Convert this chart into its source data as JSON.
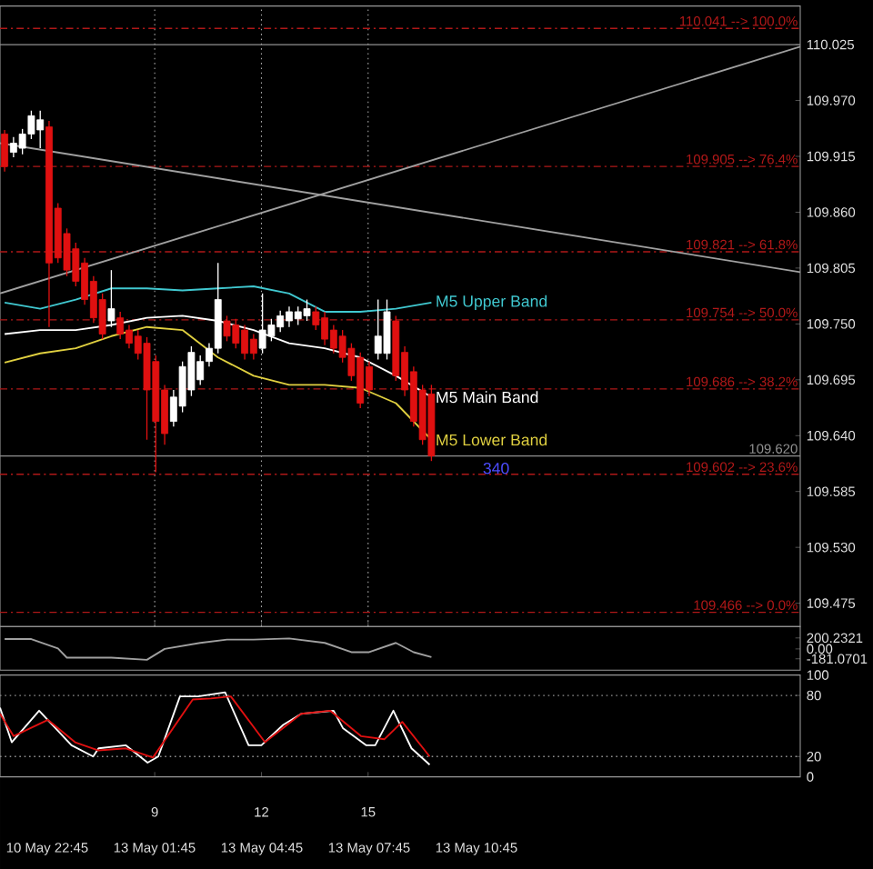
{
  "chart_data": [
    {
      "type": "candlestick",
      "x": [
        4.78,
        5.03,
        5.28,
        5.53,
        5.78,
        6.03,
        6.28,
        6.53,
        6.78,
        7.03,
        7.28,
        7.53,
        7.78,
        8.03,
        8.28,
        8.53,
        8.78,
        9.03,
        9.28,
        9.53,
        9.78,
        10.03,
        10.28,
        10.53,
        10.78,
        11.03,
        11.28,
        11.53,
        11.78,
        12.03,
        12.28,
        12.53,
        12.78,
        13.03,
        13.28,
        13.53,
        13.78,
        14.03,
        14.28,
        14.53,
        14.78,
        15.03,
        15.28,
        15.53,
        15.78,
        16.03,
        16.28,
        16.53,
        16.78
      ],
      "ohlc": [
        [
          109.937,
          109.941,
          109.9,
          109.905
        ],
        [
          109.919,
          109.934,
          109.914,
          109.928
        ],
        [
          109.923,
          109.942,
          109.917,
          109.937
        ],
        [
          109.937,
          109.96,
          109.932,
          109.955
        ],
        [
          109.941,
          109.96,
          109.923,
          109.951
        ],
        [
          109.944,
          109.95,
          109.747,
          109.81
        ],
        [
          109.864,
          109.869,
          109.81,
          109.815
        ],
        [
          109.839,
          109.844,
          109.797,
          109.803
        ],
        [
          109.824,
          109.83,
          109.787,
          109.792
        ],
        [
          109.81,
          109.815,
          109.769,
          109.774
        ],
        [
          109.792,
          109.797,
          109.751,
          109.756
        ],
        [
          109.774,
          109.78,
          109.735,
          109.74
        ],
        [
          109.753,
          109.803,
          109.747,
          109.765
        ],
        [
          109.756,
          109.762,
          109.735,
          109.74
        ],
        [
          109.744,
          109.749,
          109.726,
          109.731
        ],
        [
          109.738,
          109.744,
          109.715,
          109.721
        ],
        [
          109.731,
          109.737,
          109.636,
          109.685
        ],
        [
          109.713,
          109.719,
          109.604,
          109.654
        ],
        [
          109.685,
          109.69,
          109.631,
          109.642
        ],
        [
          109.654,
          109.685,
          109.649,
          109.678
        ],
        [
          109.669,
          109.713,
          109.663,
          109.708
        ],
        [
          109.685,
          109.728,
          109.679,
          109.722
        ],
        [
          109.695,
          109.719,
          109.69,
          109.713
        ],
        [
          109.713,
          109.731,
          109.708,
          109.726
        ],
        [
          109.726,
          109.81,
          109.721,
          109.774
        ],
        [
          109.753,
          109.758,
          109.733,
          109.738
        ],
        [
          109.749,
          109.755,
          109.726,
          109.731
        ],
        [
          109.744,
          109.749,
          109.715,
          109.721
        ],
        [
          109.735,
          109.74,
          109.715,
          109.721
        ],
        [
          109.726,
          109.78,
          109.721,
          109.744
        ],
        [
          109.738,
          109.755,
          109.733,
          109.749
        ],
        [
          109.747,
          109.763,
          109.742,
          109.758
        ],
        [
          109.753,
          109.767,
          109.747,
          109.762
        ],
        [
          109.755,
          109.767,
          109.749,
          109.762
        ],
        [
          109.758,
          109.774,
          109.753,
          109.765
        ],
        [
          109.762,
          109.767,
          109.744,
          109.749
        ],
        [
          109.756,
          109.762,
          109.729,
          109.735
        ],
        [
          109.744,
          109.749,
          109.721,
          109.726
        ],
        [
          109.738,
          109.744,
          109.712,
          109.717
        ],
        [
          109.726,
          109.731,
          109.694,
          109.699
        ],
        [
          109.717,
          109.722,
          109.667,
          109.672
        ],
        [
          109.708,
          109.713,
          109.679,
          109.685
        ],
        [
          109.721,
          109.774,
          109.715,
          109.738
        ],
        [
          109.721,
          109.774,
          109.715,
          109.762
        ],
        [
          109.753,
          109.758,
          109.694,
          109.699
        ],
        [
          109.722,
          109.728,
          109.679,
          109.685
        ],
        [
          109.703,
          109.708,
          109.649,
          109.654
        ],
        [
          109.685,
          109.69,
          109.631,
          109.636
        ],
        [
          109.681,
          109.69,
          109.615,
          109.62
        ]
      ],
      "colors": [
        "#e01010",
        "#ffffff",
        "#ffffff",
        "#ffffff",
        "#ffffff",
        "#e01010",
        "#e01010",
        "#e01010",
        "#e01010",
        "#e01010",
        "#e01010",
        "#e01010",
        "#ffffff",
        "#e01010",
        "#e01010",
        "#e01010",
        "#e01010",
        "#e01010",
        "#e01010",
        "#ffffff",
        "#ffffff",
        "#ffffff",
        "#ffffff",
        "#ffffff",
        "#ffffff",
        "#e01010",
        "#e01010",
        "#e01010",
        "#e01010",
        "#ffffff",
        "#ffffff",
        "#ffffff",
        "#ffffff",
        "#ffffff",
        "#ffffff",
        "#e01010",
        "#e01010",
        "#e01010",
        "#e01010",
        "#e01010",
        "#e01010",
        "#e01010",
        "#ffffff",
        "#ffffff",
        "#e01010",
        "#e01010",
        "#e01010",
        "#e01010",
        "#e01010"
      ],
      "series": [
        {
          "type": "line",
          "color": "#a0a0a0",
          "x": [
            4.65,
            27.15
          ],
          "values": [
            109.78,
            110.023
          ]
        },
        {
          "type": "line",
          "color": "#a0a0a0",
          "x": [
            4.65,
            27.15
          ],
          "values": [
            109.928,
            109.801
          ]
        },
        {
          "type": "line",
          "name": "M5 Upper Band",
          "color": "#40c8d0",
          "x": [
            4.78,
            5.78,
            6.78,
            7.78,
            8.78,
            9.78,
            10.78,
            11.78,
            12.78,
            13.78,
            14.78,
            15.78,
            16.78
          ],
          "values": [
            109.771,
            109.765,
            109.774,
            109.785,
            109.785,
            109.783,
            109.785,
            109.787,
            109.78,
            109.762,
            109.762,
            109.765,
            109.771
          ]
        },
        {
          "type": "line",
          "name": "M5 Main Band",
          "color": "#ffffff",
          "x": [
            4.78,
            5.78,
            6.78,
            7.78,
            8.78,
            9.78,
            10.78,
            11.78,
            12.78,
            13.78,
            14.78,
            15.78,
            16.78
          ],
          "values": [
            109.74,
            109.744,
            109.744,
            109.749,
            109.756,
            109.758,
            109.753,
            109.744,
            109.731,
            109.726,
            109.717,
            109.699,
            109.678
          ]
        },
        {
          "type": "line",
          "name": "M5 Lower Band",
          "color": "#e0d040",
          "x": [
            4.78,
            5.78,
            6.78,
            7.78,
            8.78,
            9.78,
            10.78,
            11.78,
            12.78,
            13.78,
            14.78,
            15.78,
            16.78
          ],
          "values": [
            109.712,
            109.721,
            109.726,
            109.738,
            109.747,
            109.744,
            109.717,
            109.699,
            109.69,
            109.69,
            109.687,
            109.672,
            109.636
          ]
        }
      ],
      "xlim": [
        4.65,
        27.15
      ],
      "ylim": [
        109.452,
        110.063
      ],
      "xticks": [
        9,
        12,
        15
      ],
      "yticks": [
        {
          "value": 110.025,
          "label": "110.025"
        },
        {
          "value": 109.97,
          "label": "109.970"
        },
        {
          "value": 109.915,
          "label": "109.915"
        },
        {
          "value": 109.86,
          "label": "109.860"
        },
        {
          "value": 109.805,
          "label": "109.805"
        },
        {
          "value": 109.75,
          "label": "109.750"
        },
        {
          "value": 109.695,
          "label": "109.695"
        },
        {
          "value": 109.64,
          "label": "109.640"
        },
        {
          "value": 109.585,
          "label": "109.585"
        },
        {
          "value": 109.53,
          "label": "109.530"
        },
        {
          "value": 109.475,
          "label": "109.475"
        }
      ],
      "grid": "x",
      "tick_labels": "y",
      "ref_lines": [
        {
          "axis": "y",
          "value": 110.025,
          "color": "#909090",
          "line_style": "solid"
        },
        {
          "axis": "y",
          "value": 110.041,
          "label": "110.041 --> 100.0%",
          "color": "#b01818",
          "line_style": "dashed"
        },
        {
          "axis": "y",
          "value": 109.905,
          "label": "109.905 --> 76.4%",
          "color": "#b01818",
          "line_style": "dashed"
        },
        {
          "axis": "y",
          "value": 109.821,
          "label": "109.821 --> 61.8%",
          "color": "#b01818",
          "line_style": "dashed"
        },
        {
          "axis": "y",
          "value": 109.754,
          "label": "109.754 --> 50.0%",
          "color": "#b01818",
          "line_style": "dashed"
        },
        {
          "axis": "y",
          "value": 109.686,
          "label": "109.686 --> 38.2%",
          "color": "#b01818",
          "line_style": "dashed"
        },
        {
          "axis": "y",
          "value": 109.602,
          "label": "109.602 --> 23.6%",
          "color": "#b01818",
          "line_style": "dashed"
        },
        {
          "axis": "y",
          "value": 109.466,
          "label": "109.466 --> 0.0%",
          "color": "#b01818",
          "line_style": "dashed"
        },
        {
          "axis": "y",
          "value": 109.62,
          "label": "109.620",
          "color": "#909090",
          "line_style": "solid"
        }
      ],
      "annotations": [
        "340"
      ]
    },
    {
      "type": "line",
      "series": [
        {
          "color": "#a0a0a0",
          "x": [
            4.78,
            5.53,
            6.28,
            6.53,
            7.78,
            8.78,
            9.28,
            10.28,
            11.03,
            11.78,
            12.78,
            13.78,
            14.53,
            15.03,
            15.78,
            16.28,
            16.78
          ],
          "values": [
            180,
            180,
            10,
            -160,
            -160,
            -200,
            0,
            110,
            170,
            170,
            190,
            110,
            -60,
            -60,
            110,
            -60,
            -150
          ]
        }
      ],
      "xlim": [
        4.65,
        27.15
      ],
      "ylim": [
        -389,
        408
      ],
      "yticks": [
        {
          "value": 200.2321,
          "label": "200.2321"
        },
        {
          "value": 0,
          "label": "0.00"
        },
        {
          "value": -181.0701,
          "label": "-181.0701"
        }
      ],
      "tick_labels": "y"
    },
    {
      "type": "line",
      "series": [
        {
          "color": "#ffffff",
          "x": [
            4.65,
            4.98,
            5.75,
            6.66,
            7.27,
            7.42,
            8.19,
            8.8,
            9.1,
            9.71,
            10.22,
            10.98,
            11.64,
            12.0,
            12.61,
            13.12,
            14.03,
            14.29,
            14.95,
            15.2,
            15.71,
            16.22,
            16.73
          ],
          "values": [
            68,
            34,
            65,
            31,
            20,
            28,
            31,
            14,
            20,
            79,
            79,
            83,
            31,
            31,
            51,
            62,
            65,
            48,
            31,
            31,
            65,
            28,
            12
          ]
        },
        {
          "color": "#e01010",
          "x": [
            4.65,
            5.03,
            6.0,
            6.76,
            7.42,
            8.19,
            8.95,
            10.07,
            10.58,
            11.14,
            12.1,
            13.12,
            13.93,
            14.8,
            15.46,
            15.96,
            16.73
          ],
          "values": [
            62,
            40,
            56,
            34,
            26,
            28,
            19,
            76,
            77,
            79,
            34,
            62,
            65,
            40,
            37,
            54,
            20
          ]
        }
      ],
      "xlim": [
        4.65,
        27.15
      ],
      "ylim": [
        0,
        100
      ],
      "yticks": [
        0,
        20,
        80,
        100
      ],
      "xticks": [
        9,
        12,
        15
      ],
      "ref_lines": [
        {
          "axis": "y",
          "value": 20,
          "color": "#909090",
          "line_style": "dotted"
        },
        {
          "axis": "y",
          "value": 80,
          "color": "#909090",
          "line_style": "dotted"
        }
      ],
      "annotations": [
        "10 May 22:45",
        "13 May 01:45",
        "13 May 04:45",
        "13 May 07:45",
        "13 May 10:45"
      ]
    }
  ]
}
